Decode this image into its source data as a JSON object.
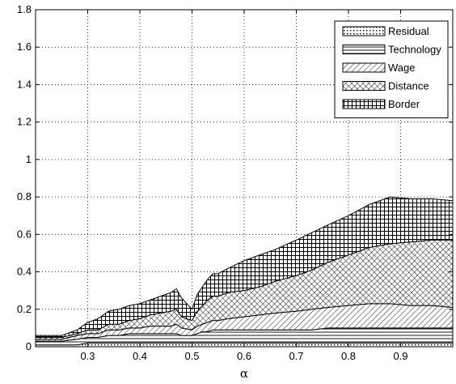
{
  "chart_data": {
    "type": "area",
    "stacked": true,
    "xlabel": "α",
    "ylabel": "",
    "title": "",
    "xlim": [
      0.2,
      1.0
    ],
    "ylim": [
      0,
      1.8
    ],
    "xticks": [
      "0.3",
      "0.4",
      "0.5",
      "0.6",
      "0.7",
      "0.8",
      "0.9"
    ],
    "yticks": [
      "0",
      "0.2",
      "0.4",
      "0.6",
      "0.8",
      "1",
      "1.2",
      "1.4",
      "1.6",
      "1.8"
    ],
    "grid": true,
    "legend_position": "top-right",
    "x": [
      0.2,
      0.25,
      0.28,
      0.3,
      0.32,
      0.34,
      0.36,
      0.38,
      0.4,
      0.42,
      0.44,
      0.46,
      0.47,
      0.48,
      0.5,
      0.51,
      0.52,
      0.53,
      0.54,
      0.55,
      0.57,
      0.6,
      0.63,
      0.66,
      0.7,
      0.73,
      0.76,
      0.8,
      0.84,
      0.88,
      0.92,
      0.96,
      1.0
    ],
    "series": [
      {
        "name": "Residual",
        "pattern": "dots",
        "values": [
          0.01,
          0.01,
          0.01,
          0.02,
          0.02,
          0.02,
          0.02,
          0.02,
          0.02,
          0.02,
          0.02,
          0.02,
          0.02,
          0.02,
          0.02,
          0.02,
          0.02,
          0.02,
          0.02,
          0.02,
          0.02,
          0.02,
          0.02,
          0.02,
          0.02,
          0.02,
          0.02,
          0.02,
          0.02,
          0.02,
          0.02,
          0.02,
          0.02
        ]
      },
      {
        "name": "Technology",
        "pattern": "horizontal-lines",
        "values": [
          0.02,
          0.02,
          0.03,
          0.03,
          0.03,
          0.04,
          0.04,
          0.05,
          0.05,
          0.05,
          0.05,
          0.05,
          0.05,
          0.04,
          0.04,
          0.05,
          0.06,
          0.06,
          0.07,
          0.07,
          0.07,
          0.07,
          0.07,
          0.07,
          0.07,
          0.07,
          0.08,
          0.08,
          0.08,
          0.08,
          0.08,
          0.08,
          0.08
        ]
      },
      {
        "name": "Wage",
        "pattern": "diagonal-lines",
        "values": [
          0.01,
          0.01,
          0.02,
          0.02,
          0.02,
          0.03,
          0.03,
          0.03,
          0.03,
          0.04,
          0.04,
          0.04,
          0.05,
          0.04,
          0.03,
          0.04,
          0.04,
          0.05,
          0.05,
          0.05,
          0.06,
          0.07,
          0.08,
          0.09,
          0.1,
          0.11,
          0.11,
          0.12,
          0.13,
          0.13,
          0.12,
          0.12,
          0.11
        ]
      },
      {
        "name": "Distance",
        "pattern": "cross-hatch",
        "values": [
          0.01,
          0.01,
          0.01,
          0.02,
          0.02,
          0.03,
          0.03,
          0.04,
          0.05,
          0.06,
          0.07,
          0.08,
          0.08,
          0.06,
          0.05,
          0.08,
          0.1,
          0.12,
          0.13,
          0.13,
          0.14,
          0.14,
          0.15,
          0.17,
          0.19,
          0.21,
          0.24,
          0.27,
          0.3,
          0.32,
          0.34,
          0.35,
          0.36
        ]
      },
      {
        "name": "Border",
        "pattern": "grid",
        "values": [
          0.01,
          0.01,
          0.02,
          0.04,
          0.06,
          0.07,
          0.08,
          0.08,
          0.08,
          0.08,
          0.09,
          0.1,
          0.11,
          0.1,
          0.06,
          0.09,
          0.1,
          0.11,
          0.12,
          0.12,
          0.13,
          0.16,
          0.17,
          0.17,
          0.19,
          0.2,
          0.2,
          0.21,
          0.23,
          0.25,
          0.23,
          0.22,
          0.21
        ]
      }
    ]
  }
}
